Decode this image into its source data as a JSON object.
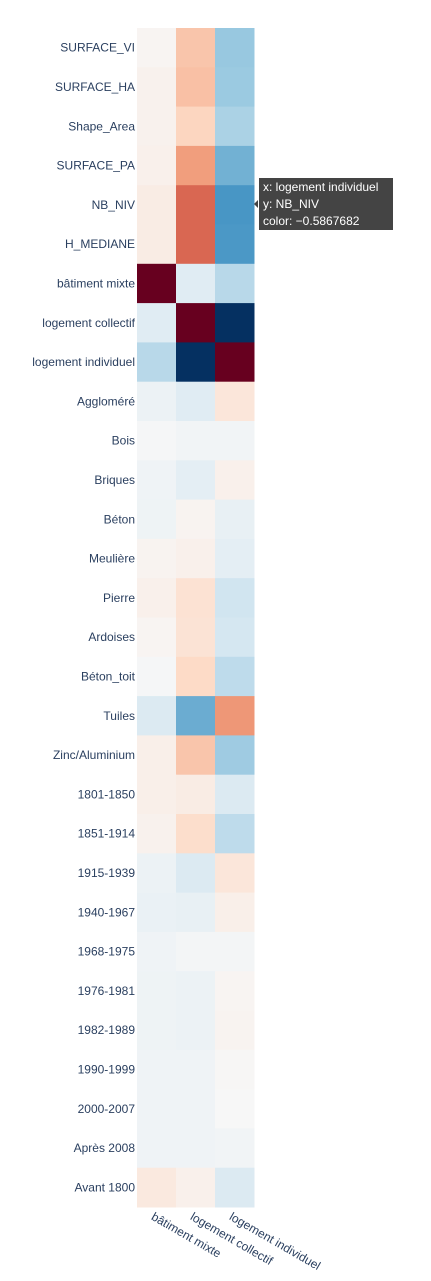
{
  "chart_data": {
    "type": "heatmap",
    "x": [
      "bâtiment mixte",
      "logement collectif",
      "logement individuel"
    ],
    "y": [
      "SURFACE_VI",
      "SURFACE_HA",
      "Shape_Area",
      "SURFACE_PA",
      "NB_NIV",
      "H_MEDIANE",
      "bâtiment mixte",
      "logement collectif",
      "logement individuel",
      "Aggloméré",
      "Bois",
      "Briques",
      "Béton",
      "Meulière",
      "Pierre",
      "Ardoises",
      "Béton_toit",
      "Tuiles",
      "Zinc/Aluminium",
      "1801-1850",
      "1851-1914",
      "1915-1939",
      "1940-1967",
      "1968-1975",
      "1976-1981",
      "1982-1989",
      "1990-1999",
      "2000-2007",
      "Après 2008",
      "Avant 1800"
    ],
    "z": [
      [
        0.02,
        0.28,
        -0.38
      ],
      [
        0.04,
        0.3,
        -0.37
      ],
      [
        0.04,
        0.22,
        -0.32
      ],
      [
        0.05,
        0.42,
        -0.48
      ],
      [
        0.08,
        0.58,
        -0.5867682
      ],
      [
        0.08,
        0.58,
        -0.58
      ],
      [
        1.0,
        -0.12,
        -0.28
      ],
      [
        -0.12,
        1.0,
        -1.0
      ],
      [
        -0.28,
        -1.0,
        1.0
      ],
      [
        -0.06,
        -0.12,
        0.12
      ],
      [
        -0.01,
        -0.03,
        -0.03
      ],
      [
        -0.04,
        -0.1,
        0.05
      ],
      [
        -0.05,
        0.03,
        -0.08
      ],
      [
        0.03,
        0.05,
        -0.1
      ],
      [
        0.05,
        0.15,
        -0.2
      ],
      [
        0.02,
        0.14,
        -0.18
      ],
      [
        -0.01,
        0.2,
        -0.26
      ],
      [
        -0.14,
        -0.5,
        0.44
      ],
      [
        0.06,
        0.28,
        -0.36
      ],
      [
        0.06,
        0.08,
        -0.14
      ],
      [
        0.04,
        0.18,
        -0.26
      ],
      [
        -0.06,
        -0.14,
        0.12
      ],
      [
        -0.07,
        -0.08,
        0.06
      ],
      [
        -0.04,
        -0.02,
        -0.02
      ],
      [
        -0.05,
        -0.06,
        0.02
      ],
      [
        -0.05,
        -0.06,
        0.03
      ],
      [
        -0.04,
        -0.04,
        0.01
      ],
      [
        -0.04,
        -0.04,
        0.0
      ],
      [
        -0.04,
        -0.04,
        -0.03
      ],
      [
        0.1,
        0.05,
        -0.14
      ]
    ],
    "colorscale": "RdBu",
    "zmin": -1,
    "zmax": 1,
    "hover": {
      "x_line": "x: logement individuel",
      "y_line": "y: NB_NIV",
      "color_line": "color: −0.5867682"
    }
  }
}
